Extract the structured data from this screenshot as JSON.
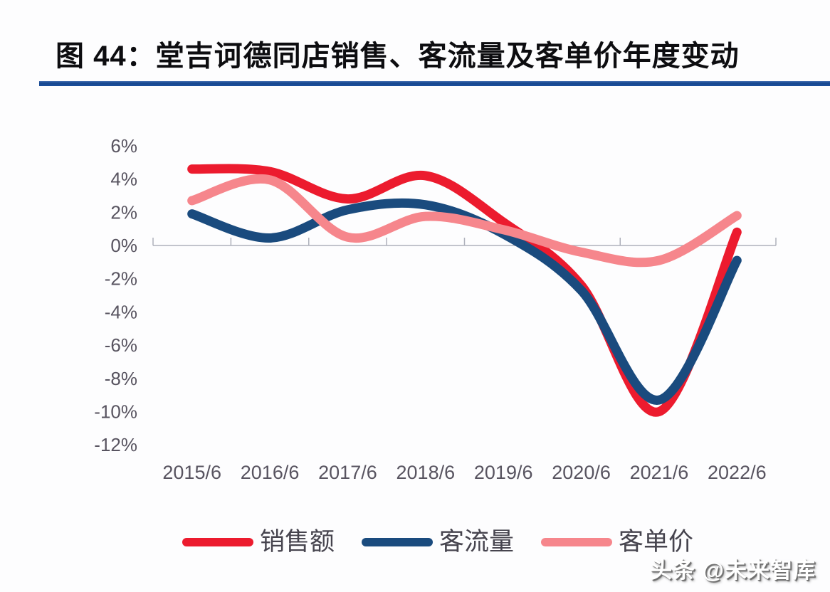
{
  "figure": {
    "title": "图 44：堂吉诃德同店销售、客流量及客单价年度变动",
    "watermark": "头条 @未来智库"
  },
  "colors": {
    "title_rule": "#1A4C99",
    "axis_line": "#AEB1BB",
    "tick_label": "#585460",
    "legend_label": "#46444E",
    "sales": "#EC1B2E",
    "traffic": "#1A4B7E",
    "ticket": "#F6868C"
  },
  "chart_data": {
    "type": "line",
    "title": "图 44：堂吉诃德同店销售、客流量及客单价年度变动",
    "categories": [
      "2015/6",
      "2016/6",
      "2017/6",
      "2018/6",
      "2019/6",
      "2020/6",
      "2021/6",
      "2022/6"
    ],
    "series": [
      {
        "name": "销售额",
        "key": "sales",
        "color": "#EC1B2E",
        "values": [
          4.6,
          4.45,
          2.8,
          4.2,
          1.4,
          -2.4,
          -10.0,
          0.8
        ]
      },
      {
        "name": "客流量",
        "key": "traffic",
        "color": "#1A4B7E",
        "values": [
          1.9,
          0.45,
          2.15,
          2.45,
          0.7,
          -2.7,
          -9.3,
          -0.9
        ]
      },
      {
        "name": "客单价",
        "key": "ticket",
        "color": "#F6868C",
        "values": [
          2.7,
          3.95,
          0.5,
          1.75,
          0.95,
          -0.4,
          -0.9,
          1.8
        ]
      }
    ],
    "y_tick_labels": [
      "6%",
      "4%",
      "2%",
      "0%",
      "-2%",
      "-4%",
      "-6%",
      "-8%",
      "-10%",
      "-12%"
    ],
    "y_tick_values": [
      6,
      4,
      2,
      0,
      -2,
      -4,
      -6,
      -8,
      -10,
      -12
    ],
    "ylim": [
      -12,
      6
    ],
    "xlabel": "",
    "ylabel": "",
    "grid": false,
    "legend_position": "bottom"
  }
}
